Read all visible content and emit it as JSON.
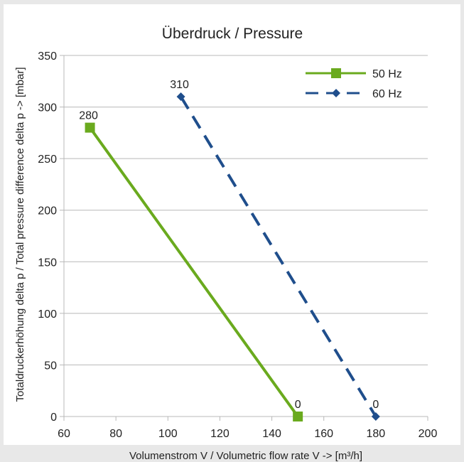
{
  "chart_data": {
    "type": "line",
    "title": "Überdruck / Pressure",
    "xlabel": "Volumenstrom V / Volumetric flow rate V -> [m³/h]",
    "ylabel": "Totaldruckerhöhung delta p / Total pressure difference delta p -> [mbar]",
    "xlim": [
      60,
      200
    ],
    "ylim": [
      0,
      350
    ],
    "xticks": [
      60,
      80,
      100,
      120,
      140,
      160,
      180,
      200
    ],
    "yticks": [
      0,
      50,
      100,
      150,
      200,
      250,
      300,
      350
    ],
    "grid": "horizontal",
    "legend_position": "top-right",
    "series": [
      {
        "name": "50 Hz",
        "color": "#6aaa1e",
        "line_style": "solid",
        "marker": "square",
        "points": [
          {
            "x": 70,
            "y": 280,
            "label": "280"
          },
          {
            "x": 150,
            "y": 0,
            "label": "0"
          }
        ]
      },
      {
        "name": "60 Hz",
        "color": "#1f4e8c",
        "line_style": "dashed",
        "marker": "diamond",
        "points": [
          {
            "x": 105,
            "y": 310,
            "label": "310"
          },
          {
            "x": 180,
            "y": 0,
            "label": "0"
          }
        ]
      }
    ]
  }
}
